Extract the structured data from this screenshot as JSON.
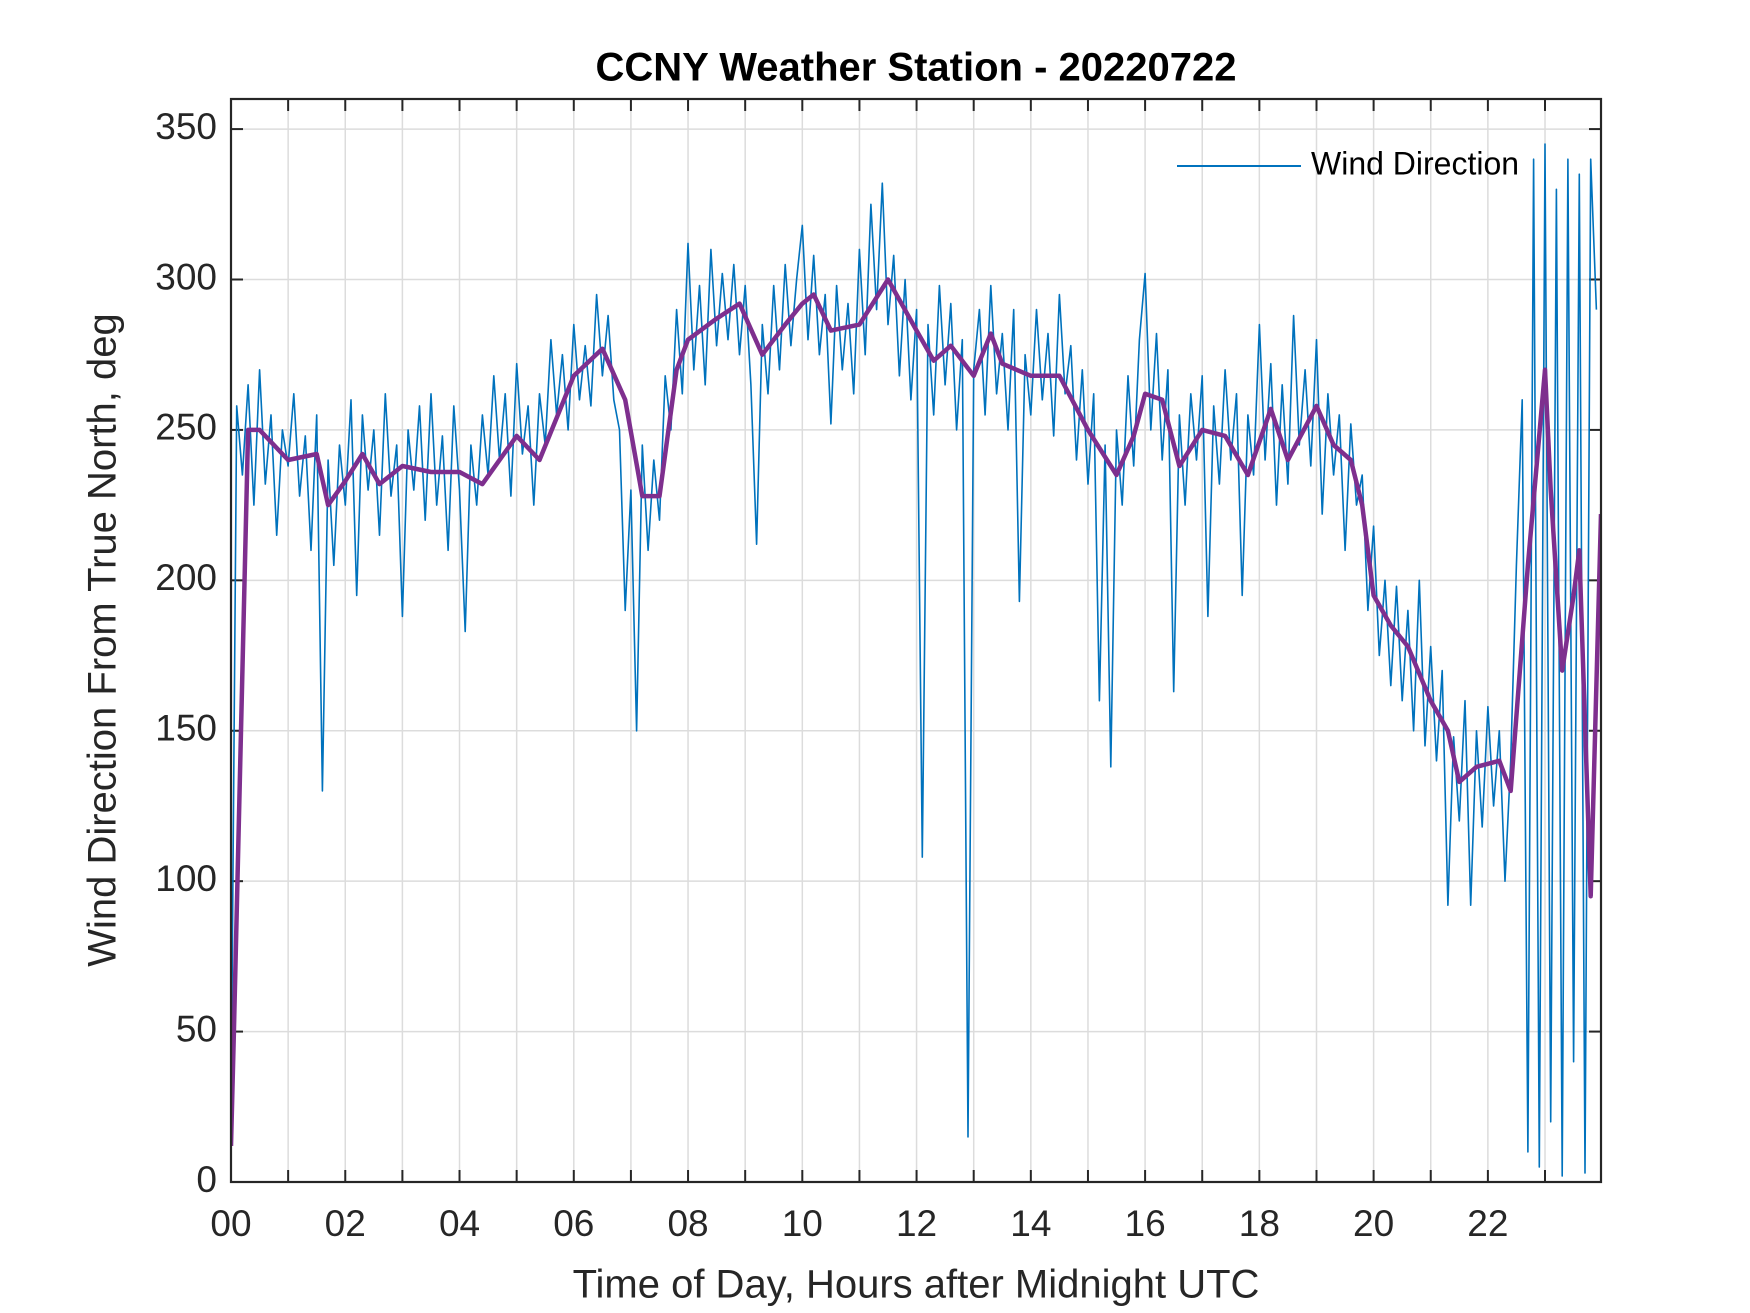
{
  "chart_data": {
    "type": "line",
    "title": "CCNY Weather Station - 20220722",
    "xlabel": "Time of Day, Hours after Midnight UTC",
    "ylabel": "Wind Direction From True North, deg",
    "xlim": [
      0,
      23.98
    ],
    "ylim": [
      0,
      360
    ],
    "xticks": [
      {
        "value": 0,
        "label": "00"
      },
      {
        "value": 2,
        "label": "02"
      },
      {
        "value": 4,
        "label": "04"
      },
      {
        "value": 6,
        "label": "06"
      },
      {
        "value": 8,
        "label": "08"
      },
      {
        "value": 10,
        "label": "10"
      },
      {
        "value": 12,
        "label": "12"
      },
      {
        "value": 14,
        "label": "14"
      },
      {
        "value": 16,
        "label": "16"
      },
      {
        "value": 18,
        "label": "18"
      },
      {
        "value": 20,
        "label": "20"
      },
      {
        "value": 22,
        "label": "22"
      }
    ],
    "xminor": [
      1,
      3,
      5,
      7,
      9,
      11,
      13,
      15,
      17,
      19,
      21,
      23
    ],
    "yticks": [
      0,
      50,
      100,
      150,
      200,
      250,
      300,
      350
    ],
    "grid": true,
    "legend": "northeast",
    "series": [
      {
        "name": "Wind Direction",
        "color": "#0072BD",
        "width": 1.6,
        "x": [
          0,
          0.1,
          0.2,
          0.3,
          0.4,
          0.5,
          0.6,
          0.7,
          0.8,
          0.9,
          1,
          1.1,
          1.2,
          1.3,
          1.4,
          1.5,
          1.6,
          1.7,
          1.8,
          1.9,
          2,
          2.1,
          2.2,
          2.3,
          2.4,
          2.5,
          2.6,
          2.7,
          2.8,
          2.9,
          3,
          3.1,
          3.2,
          3.3,
          3.4,
          3.5,
          3.6,
          3.7,
          3.8,
          3.9,
          4,
          4.1,
          4.2,
          4.3,
          4.4,
          4.5,
          4.6,
          4.7,
          4.8,
          4.9,
          5,
          5.1,
          5.2,
          5.3,
          5.4,
          5.5,
          5.6,
          5.7,
          5.8,
          5.9,
          6,
          6.1,
          6.2,
          6.3,
          6.4,
          6.5,
          6.6,
          6.7,
          6.8,
          6.9,
          7,
          7.1,
          7.2,
          7.3,
          7.4,
          7.5,
          7.6,
          7.7,
          7.8,
          7.9,
          8,
          8.1,
          8.2,
          8.3,
          8.4,
          8.5,
          8.6,
          8.7,
          8.8,
          8.9,
          9,
          9.1,
          9.2,
          9.3,
          9.4,
          9.5,
          9.6,
          9.7,
          9.8,
          9.9,
          10,
          10.1,
          10.2,
          10.3,
          10.4,
          10.5,
          10.6,
          10.7,
          10.8,
          10.9,
          11,
          11.1,
          11.2,
          11.3,
          11.4,
          11.5,
          11.6,
          11.7,
          11.8,
          11.9,
          12,
          12.1,
          12.2,
          12.3,
          12.4,
          12.5,
          12.6,
          12.7,
          12.8,
          12.9,
          13,
          13.1,
          13.2,
          13.3,
          13.4,
          13.5,
          13.6,
          13.7,
          13.8,
          13.9,
          14,
          14.1,
          14.2,
          14.3,
          14.4,
          14.5,
          14.6,
          14.7,
          14.8,
          14.9,
          15,
          15.1,
          15.2,
          15.3,
          15.4,
          15.5,
          15.6,
          15.7,
          15.8,
          15.9,
          16,
          16.1,
          16.2,
          16.3,
          16.4,
          16.5,
          16.6,
          16.7,
          16.8,
          16.9,
          17,
          17.1,
          17.2,
          17.3,
          17.4,
          17.5,
          17.6,
          17.7,
          17.8,
          17.9,
          18,
          18.1,
          18.2,
          18.3,
          18.4,
          18.5,
          18.6,
          18.7,
          18.8,
          18.9,
          19,
          19.1,
          19.2,
          19.3,
          19.4,
          19.5,
          19.6,
          19.7,
          19.8,
          19.9,
          20,
          20.1,
          20.2,
          20.3,
          20.4,
          20.5,
          20.6,
          20.7,
          20.8,
          20.9,
          21,
          21.1,
          21.2,
          21.3,
          21.4,
          21.5,
          21.6,
          21.7,
          21.8,
          21.9,
          22,
          22.1,
          22.2,
          22.3,
          22.4,
          22.5,
          22.6,
          22.7,
          22.8,
          22.9,
          23,
          23.1,
          23.2,
          23.3,
          23.4,
          23.5,
          23.6,
          23.7,
          23.8,
          23.9
        ],
        "values": [
          20,
          258,
          235,
          265,
          225,
          270,
          232,
          255,
          215,
          250,
          238,
          262,
          228,
          248,
          210,
          255,
          130,
          240,
          205,
          245,
          225,
          260,
          195,
          255,
          230,
          250,
          215,
          262,
          228,
          245,
          188,
          250,
          230,
          258,
          220,
          262,
          225,
          248,
          210,
          258,
          230,
          183,
          245,
          225,
          255,
          235,
          268,
          240,
          262,
          228,
          272,
          242,
          258,
          225,
          262,
          245,
          280,
          255,
          275,
          250,
          285,
          260,
          278,
          258,
          295,
          268,
          288,
          260,
          250,
          190,
          230,
          150,
          245,
          210,
          240,
          220,
          268,
          250,
          290,
          262,
          312,
          270,
          298,
          265,
          310,
          278,
          302,
          280,
          305,
          275,
          298,
          265,
          212,
          285,
          262,
          298,
          270,
          305,
          278,
          300,
          318,
          280,
          308,
          275,
          295,
          252,
          298,
          270,
          292,
          262,
          310,
          275,
          325,
          290,
          332,
          285,
          308,
          268,
          300,
          260,
          290,
          108,
          285,
          255,
          298,
          265,
          292,
          250,
          280,
          15,
          270,
          290,
          255,
          298,
          262,
          282,
          250,
          290,
          193,
          275,
          255,
          290,
          260,
          282,
          248,
          295,
          262,
          278,
          240,
          270,
          232,
          262,
          160,
          245,
          138,
          250,
          225,
          268,
          238,
          280,
          302,
          250,
          282,
          240,
          270,
          163,
          255,
          225,
          262,
          240,
          268,
          188,
          258,
          232,
          270,
          240,
          262,
          195,
          255,
          235,
          285,
          240,
          272,
          225,
          265,
          232,
          288,
          245,
          270,
          238,
          280,
          222,
          262,
          235,
          255,
          210,
          252,
          225,
          235,
          190,
          218,
          175,
          200,
          165,
          198,
          160,
          190,
          150,
          200,
          145,
          178,
          140,
          170,
          92,
          148,
          120,
          160,
          92,
          150,
          118,
          158,
          125,
          150,
          100,
          140,
          205,
          260,
          10,
          340,
          5,
          345,
          20,
          330,
          2,
          340,
          40,
          335,
          3,
          340,
          290
        ]
      },
      {
        "color": "#7E2F8E",
        "width": 4.5,
        "x": [
          0,
          0.05,
          0.3,
          0.5,
          1,
          1.5,
          1.7,
          2,
          2.3,
          2.6,
          3,
          3.5,
          4,
          4.4,
          5,
          5.4,
          6,
          6.5,
          6.9,
          7.2,
          7.5,
          7.8,
          8,
          8.5,
          8.9,
          9.3,
          9.7,
          10,
          10.2,
          10.5,
          11,
          11.5,
          12,
          12.3,
          12.6,
          13,
          13.3,
          13.5,
          14,
          14.5,
          15,
          15.5,
          15.8,
          16,
          16.3,
          16.6,
          17,
          17.4,
          17.8,
          18.2,
          18.5,
          19,
          19.3,
          19.6,
          19.8,
          20,
          20.3,
          20.6,
          21,
          21.3,
          21.5,
          21.8,
          22.2,
          22.4,
          22.7,
          23,
          23.1,
          23.3,
          23.5,
          23.6,
          23.8,
          23.98
        ],
        "values": [
          12,
          50,
          250,
          250,
          240,
          242,
          225,
          233,
          242,
          232,
          238,
          236,
          236,
          232,
          248,
          240,
          268,
          277,
          260,
          228,
          228,
          270,
          280,
          287,
          292,
          275,
          285,
          292,
          295,
          283,
          285,
          300,
          283,
          273,
          278,
          268,
          282,
          272,
          268,
          268,
          250,
          235,
          248,
          262,
          260,
          238,
          250,
          248,
          235,
          257,
          240,
          258,
          245,
          240,
          225,
          195,
          185,
          178,
          160,
          150,
          133,
          138,
          140,
          130,
          205,
          270,
          230,
          170,
          195,
          210,
          95,
          222
        ]
      }
    ]
  }
}
